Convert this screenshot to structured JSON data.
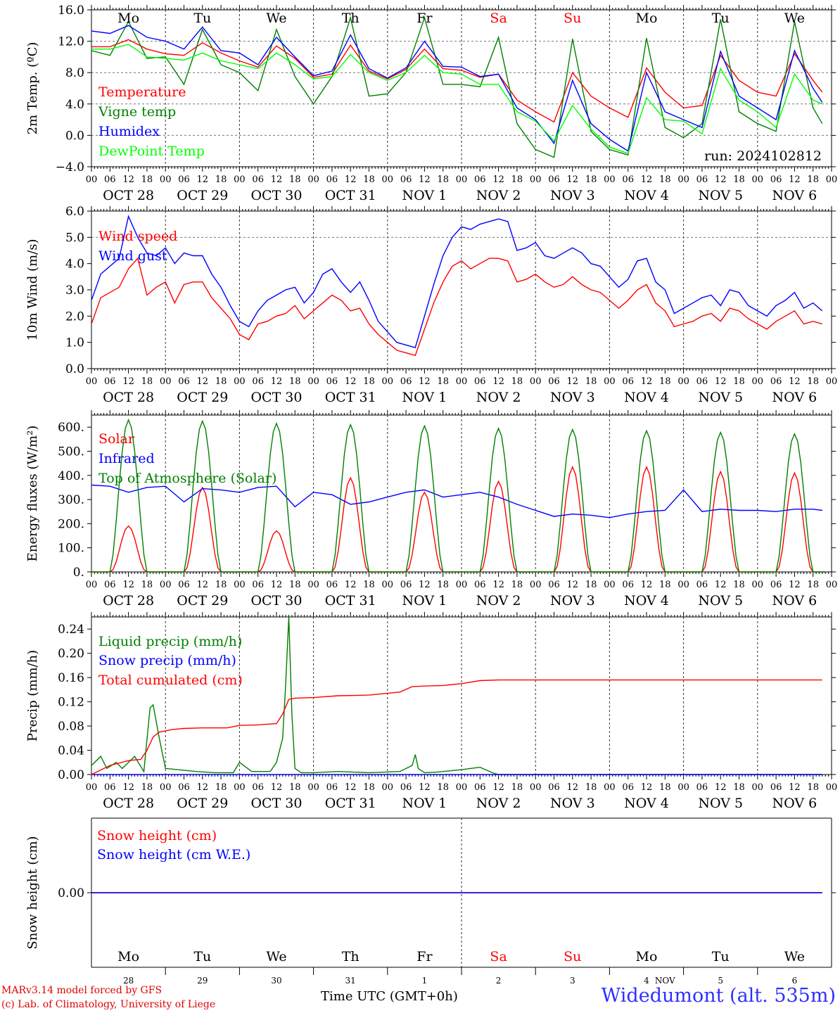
{
  "run_label": "run: 2024102812",
  "hour_ticks": [
    "00",
    "06",
    "12",
    "18"
  ],
  "date_labels": [
    "OCT 28",
    "OCT 29",
    "OCT 30",
    "OCT 31",
    "NOV  1",
    "NOV  2",
    "NOV  3",
    "NOV  4",
    "NOV  5",
    "NOV  6"
  ],
  "weekdays": [
    {
      "label": "Mo",
      "color": "#000000"
    },
    {
      "label": "Tu",
      "color": "#000000"
    },
    {
      "label": "We",
      "color": "#000000"
    },
    {
      "label": "Th",
      "color": "#000000"
    },
    {
      "label": "Fr",
      "color": "#000000"
    },
    {
      "label": "Sa",
      "color": "#ff0000"
    },
    {
      "label": "Su",
      "color": "#ff0000"
    },
    {
      "label": "Mo",
      "color": "#000000"
    },
    {
      "label": "Tu",
      "color": "#000000"
    },
    {
      "label": "We",
      "color": "#000000"
    }
  ],
  "bottom_day_numbers": [
    "28",
    "29",
    "30",
    "31",
    "1",
    "2",
    "3",
    "4",
    "5",
    "6"
  ],
  "bottom_month": "NOV",
  "footer": {
    "credit_line1": "MARv3.14 model forced by GFS",
    "credit_line2": "(c) Lab. of Climatology, University of Liege",
    "xlabel": "Time UTC (GMT+0h)",
    "station": "Widedumont (alt. 535m)"
  },
  "chart_data": [
    {
      "type": "line",
      "ylabel": "2m Temp. (ºC)",
      "ylim": [
        -4,
        16
      ],
      "yticks": [
        "−4.0",
        "0.0",
        "4.0",
        "8.0",
        "12.0",
        "16.0"
      ],
      "x_unit": "hours since Oct 28 00 UTC",
      "series": [
        {
          "name": "Temperature",
          "color": "#ff0000",
          "x": [
            0,
            6,
            12,
            18,
            24,
            30,
            36,
            42,
            48,
            54,
            60,
            66,
            72,
            78,
            84,
            90,
            96,
            102,
            108,
            114,
            120,
            126,
            132,
            138,
            144,
            150,
            156,
            162,
            168,
            174,
            180,
            186,
            192,
            198,
            204,
            210,
            216,
            222,
            228,
            234,
            237
          ],
          "y": [
            11.3,
            11.3,
            12.2,
            11.0,
            10.4,
            10.2,
            11.8,
            10.5,
            9.5,
            8.7,
            11.4,
            9.8,
            7.4,
            7.8,
            11.5,
            8.2,
            7.2,
            8.4,
            11.0,
            8.5,
            8.3,
            7.4,
            7.8,
            4.5,
            3.0,
            1.7,
            8.0,
            5.0,
            3.5,
            2.3,
            8.6,
            5.5,
            3.5,
            3.8,
            10.2,
            7.0,
            5.5,
            5.0,
            10.4,
            7.0,
            5.5
          ]
        },
        {
          "name": "Vigne temp",
          "color": "#008000",
          "x": [
            0,
            6,
            12,
            18,
            24,
            30,
            36,
            42,
            48,
            54,
            60,
            66,
            72,
            78,
            84,
            90,
            96,
            102,
            108,
            114,
            120,
            126,
            132,
            138,
            144,
            150,
            156,
            162,
            168,
            174,
            180,
            186,
            192,
            198,
            204,
            210,
            216,
            222,
            228,
            234,
            237
          ],
          "y": [
            10.8,
            10.2,
            14.5,
            9.8,
            10.0,
            6.5,
            13.5,
            9.0,
            8.0,
            5.7,
            13.5,
            7.5,
            4.0,
            7.5,
            15.0,
            5.0,
            5.3,
            8.0,
            15.0,
            6.5,
            6.5,
            6.2,
            12.5,
            1.5,
            -1.8,
            -2.8,
            12.3,
            0.5,
            -1.8,
            -2.5,
            12.4,
            1.0,
            -0.3,
            1.5,
            14.8,
            3.0,
            1.5,
            0.5,
            14.5,
            3.5,
            1.5
          ]
        },
        {
          "name": "Humidex",
          "color": "#0000ff",
          "x": [
            0,
            6,
            12,
            18,
            24,
            30,
            36,
            42,
            48,
            54,
            60,
            66,
            72,
            78,
            84,
            90,
            96,
            102,
            108,
            114,
            120,
            126,
            132,
            138,
            144,
            150,
            156,
            162,
            168,
            174,
            180,
            186,
            192,
            198,
            204,
            210,
            216,
            222,
            228,
            234,
            237
          ],
          "y": [
            13.3,
            13.0,
            14.0,
            12.5,
            12.0,
            11.0,
            13.8,
            10.8,
            10.5,
            9.0,
            12.5,
            10.0,
            7.6,
            8.2,
            12.8,
            8.5,
            7.3,
            8.6,
            12.0,
            8.8,
            8.7,
            7.5,
            7.8,
            3.5,
            2.0,
            -1.0,
            7.0,
            1.5,
            -0.5,
            -2.0,
            8.0,
            3.0,
            2.0,
            1.0,
            10.7,
            5.0,
            3.5,
            2.0,
            10.8,
            6.0,
            4.2
          ]
        },
        {
          "name": "DewPoint Temp",
          "color": "#00ff00",
          "x": [
            0,
            6,
            12,
            18,
            24,
            30,
            36,
            42,
            48,
            54,
            60,
            66,
            72,
            78,
            84,
            90,
            96,
            102,
            108,
            114,
            120,
            126,
            132,
            138,
            144,
            150,
            156,
            162,
            168,
            174,
            180,
            186,
            192,
            198,
            204,
            210,
            216,
            222,
            228,
            234,
            237
          ],
          "y": [
            11.0,
            11.0,
            11.6,
            10.0,
            9.8,
            9.6,
            10.5,
            9.5,
            9.0,
            8.5,
            10.5,
            9.0,
            7.2,
            7.5,
            10.3,
            8.0,
            7.0,
            8.0,
            10.2,
            8.0,
            7.8,
            6.5,
            6.5,
            3.0,
            1.8,
            -0.7,
            3.8,
            0.8,
            -1.5,
            -2.3,
            4.8,
            2.0,
            1.8,
            0.2,
            8.5,
            4.5,
            3.0,
            1.0,
            7.8,
            4.5,
            4.0
          ]
        }
      ]
    },
    {
      "type": "line",
      "ylabel": "10m Wind (m/s)",
      "ylim": [
        0,
        6
      ],
      "yticks": [
        "0.0",
        "1.0",
        "2.0",
        "3.0",
        "4.0",
        "5.0",
        "6.0"
      ],
      "x_unit": "hours since Oct 28 00 UTC",
      "series": [
        {
          "name": "Wind speed",
          "color": "#ff0000",
          "x": [
            0,
            3,
            6,
            9,
            12,
            15,
            18,
            21,
            24,
            27,
            30,
            33,
            36,
            39,
            42,
            45,
            48,
            51,
            54,
            57,
            60,
            63,
            66,
            69,
            72,
            75,
            78,
            81,
            84,
            87,
            90,
            93,
            96,
            99,
            102,
            105,
            108,
            111,
            114,
            117,
            120,
            123,
            126,
            129,
            132,
            135,
            138,
            141,
            144,
            147,
            150,
            153,
            156,
            159,
            162,
            165,
            168,
            171,
            174,
            177,
            180,
            183,
            186,
            189,
            192,
            195,
            198,
            201,
            204,
            207,
            210,
            213,
            216,
            219,
            222,
            225,
            228,
            231,
            234,
            237
          ],
          "y": [
            1.7,
            2.7,
            2.9,
            3.1,
            3.8,
            4.2,
            2.8,
            3.1,
            3.3,
            2.5,
            3.2,
            3.3,
            3.3,
            2.7,
            2.3,
            1.9,
            1.3,
            1.1,
            1.7,
            1.8,
            2.0,
            2.1,
            2.4,
            1.9,
            2.2,
            2.5,
            2.8,
            2.6,
            2.2,
            2.3,
            1.7,
            1.3,
            1.0,
            0.7,
            0.6,
            0.5,
            1.5,
            2.5,
            3.3,
            3.9,
            4.1,
            3.8,
            4.0,
            4.2,
            4.2,
            4.1,
            3.3,
            3.4,
            3.6,
            3.3,
            3.1,
            3.2,
            3.5,
            3.2,
            3.0,
            2.9,
            2.6,
            2.3,
            2.6,
            3.0,
            3.2,
            2.5,
            2.2,
            1.6,
            1.7,
            1.8,
            2.0,
            2.1,
            1.8,
            2.3,
            2.2,
            1.9,
            1.7,
            1.5,
            1.8,
            2.0,
            2.2,
            1.7,
            1.8,
            1.7
          ]
        },
        {
          "name": "Wind gust",
          "color": "#0000ff",
          "x": [
            0,
            3,
            6,
            9,
            12,
            15,
            18,
            21,
            24,
            27,
            30,
            33,
            36,
            39,
            42,
            45,
            48,
            51,
            54,
            57,
            60,
            63,
            66,
            69,
            72,
            75,
            78,
            81,
            84,
            87,
            90,
            93,
            96,
            99,
            102,
            105,
            108,
            111,
            114,
            117,
            120,
            123,
            126,
            129,
            132,
            135,
            138,
            141,
            144,
            147,
            150,
            153,
            156,
            159,
            162,
            165,
            168,
            171,
            174,
            177,
            180,
            183,
            186,
            189,
            192,
            195,
            198,
            201,
            204,
            207,
            210,
            213,
            216,
            219,
            222,
            225,
            228,
            231,
            234,
            237
          ],
          "y": [
            2.6,
            3.6,
            3.9,
            4.2,
            5.8,
            5.0,
            4.4,
            4.3,
            4.6,
            4.0,
            4.4,
            4.3,
            4.3,
            3.6,
            3.1,
            2.4,
            1.8,
            1.6,
            2.2,
            2.6,
            2.8,
            3.0,
            3.1,
            2.5,
            2.9,
            3.6,
            3.8,
            3.3,
            2.9,
            3.3,
            2.6,
            1.8,
            1.4,
            1.0,
            0.9,
            0.8,
            2.0,
            3.2,
            4.3,
            5.0,
            5.4,
            5.3,
            5.5,
            5.6,
            5.7,
            5.6,
            4.5,
            4.6,
            4.8,
            4.3,
            4.2,
            4.4,
            4.6,
            4.4,
            4.0,
            3.9,
            3.5,
            3.1,
            3.4,
            4.1,
            4.2,
            3.3,
            3.0,
            2.1,
            2.3,
            2.5,
            2.7,
            2.8,
            2.4,
            3.0,
            2.9,
            2.4,
            2.2,
            2.0,
            2.4,
            2.6,
            2.9,
            2.3,
            2.5,
            2.2
          ]
        }
      ]
    },
    {
      "type": "line",
      "ylabel": "Energy fluxes (W/m²)",
      "ylim": [
        0,
        650
      ],
      "yticks": [
        "0.",
        "100.",
        "200.",
        "300.",
        "400.",
        "500.",
        "600."
      ],
      "x_unit": "hours since Oct 28 00 UTC",
      "series": [
        {
          "name": "Solar",
          "color": "#ff0000",
          "peaks": [
            190,
            350,
            170,
            390,
            330,
            375,
            435,
            435,
            415,
            410
          ]
        },
        {
          "name": "Infrared",
          "color": "#0000ff",
          "x": [
            0,
            6,
            12,
            18,
            24,
            30,
            36,
            42,
            48,
            54,
            60,
            66,
            72,
            78,
            84,
            90,
            96,
            102,
            108,
            114,
            120,
            126,
            132,
            138,
            144,
            150,
            156,
            162,
            168,
            174,
            180,
            186,
            192,
            198,
            204,
            210,
            216,
            222,
            228,
            234,
            237
          ],
          "y": [
            360,
            355,
            330,
            350,
            355,
            290,
            345,
            340,
            330,
            350,
            355,
            270,
            330,
            320,
            280,
            290,
            310,
            330,
            340,
            310,
            320,
            330,
            310,
            280,
            255,
            230,
            240,
            235,
            225,
            240,
            250,
            255,
            340,
            250,
            260,
            255,
            255,
            250,
            260,
            260,
            255
          ]
        },
        {
          "name": "Top of Atmosphere (Solar)",
          "color": "#008000",
          "peaks": [
            630,
            625,
            615,
            610,
            605,
            595,
            590,
            585,
            578,
            572
          ]
        }
      ]
    },
    {
      "type": "line",
      "ylabel": "Precip (mm/h)",
      "ylim": [
        0,
        0.26
      ],
      "yticks": [
        "0.00",
        "0.04",
        "0.08",
        "0.12",
        "0.16",
        "0.20",
        "0.24"
      ],
      "x_unit": "hours since Oct 28 00 UTC",
      "series": [
        {
          "name": "Liquid precip (mm/h)",
          "color": "#008000",
          "x": [
            0,
            3,
            5,
            8,
            10,
            14,
            17,
            19,
            20,
            22,
            24,
            28,
            34,
            40,
            46,
            48,
            52,
            58,
            60,
            62,
            63,
            64,
            65,
            66,
            68,
            72,
            80,
            90,
            100,
            104,
            105,
            106,
            108,
            112,
            120,
            126,
            130,
            132,
            140,
            237
          ],
          "y": [
            0.015,
            0.03,
            0.01,
            0.02,
            0.01,
            0.03,
            0.005,
            0.11,
            0.115,
            0.06,
            0.01,
            0.008,
            0.005,
            0.003,
            0.003,
            0.02,
            0.005,
            0.005,
            0.02,
            0.06,
            0.15,
            0.26,
            0.1,
            0.01,
            0.003,
            0.003,
            0.005,
            0.003,
            0.005,
            0.015,
            0.033,
            0.01,
            0.003,
            0.004,
            0.008,
            0.012,
            0.003,
            0.0,
            0.0,
            0.0
          ]
        },
        {
          "name": "Snow precip (mm/h)",
          "color": "#0000ff",
          "x": [
            0,
            237
          ],
          "y": [
            0,
            0
          ]
        },
        {
          "name": "Total cumulated (cm)",
          "color": "#ff0000",
          "x": [
            0,
            6,
            12,
            16,
            18,
            20,
            22,
            26,
            30,
            36,
            44,
            48,
            54,
            60,
            62,
            64,
            66,
            72,
            80,
            90,
            100,
            104,
            108,
            114,
            120,
            126,
            132,
            140,
            237
          ],
          "y": [
            0,
            0.015,
            0.023,
            0.025,
            0.04,
            0.062,
            0.07,
            0.074,
            0.076,
            0.077,
            0.077,
            0.081,
            0.082,
            0.084,
            0.1,
            0.124,
            0.126,
            0.127,
            0.13,
            0.131,
            0.136,
            0.145,
            0.146,
            0.147,
            0.15,
            0.155,
            0.156,
            0.156,
            0.156
          ]
        }
      ]
    },
    {
      "type": "line",
      "ylabel": "Snow height (cm)",
      "yticks": [
        "0.00"
      ],
      "x_unit": "hours since Oct 28 00 UTC",
      "series": [
        {
          "name": "Snow height (cm)",
          "color": "#ff0000",
          "x": [
            0,
            237
          ],
          "y": [
            0,
            0
          ]
        },
        {
          "name": "Snow height (cm W.E.)",
          "color": "#0000ff",
          "x": [
            0,
            237
          ],
          "y": [
            0,
            0
          ]
        }
      ]
    }
  ]
}
